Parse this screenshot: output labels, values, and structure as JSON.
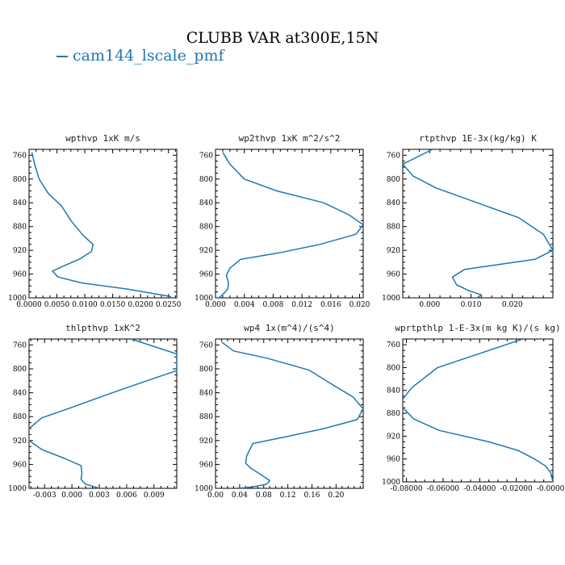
{
  "title": "CLUBB VAR at300E,15N",
  "legend": {
    "label": "cam144_lscale_pmf",
    "color": "#1f77b4"
  },
  "chart_data": [
    {
      "type": "line",
      "title": "wpthvp  1xK m/s",
      "ylim": [
        1000,
        750
      ],
      "xlim": [
        0.0,
        0.0265
      ],
      "yticks": [
        760,
        800,
        840,
        880,
        920,
        960,
        1000
      ],
      "xticks": [
        0.0,
        0.005,
        0.01,
        0.015,
        0.02,
        0.025
      ],
      "xticklabels": [
        "0.0000",
        "0.0050",
        "0.0100",
        "0.0150",
        "0.0200",
        "0.0250"
      ],
      "series": [
        {
          "x": [
            0.0005,
            0.001,
            0.0018,
            0.0035,
            0.0058,
            0.0075,
            0.0097,
            0.0115,
            0.0112,
            0.009,
            0.0058,
            0.0042,
            0.0052,
            0.0095,
            0.0175,
            0.0255
          ],
          "y": [
            755,
            775,
            800,
            825,
            845,
            870,
            895,
            910,
            922,
            935,
            948,
            955,
            965,
            975,
            985,
            998
          ]
        }
      ]
    },
    {
      "type": "line",
      "title": "wp2thvp  1xK m^2/s^2",
      "ylim": [
        1000,
        750
      ],
      "xlim": [
        0.0,
        0.0205
      ],
      "yticks": [
        760,
        800,
        840,
        880,
        920,
        960,
        1000
      ],
      "xticks": [
        0.0,
        0.004,
        0.008,
        0.012,
        0.016,
        0.02
      ],
      "xticklabels": [
        "0.000",
        "0.004",
        "0.008",
        "0.012",
        "0.016",
        "0.020"
      ],
      "series": [
        {
          "x": [
            0.001,
            0.002,
            0.004,
            0.0085,
            0.015,
            0.0185,
            0.0205,
            0.0195,
            0.0145,
            0.0085,
            0.0035,
            0.002,
            0.0015,
            0.0018,
            0.0017,
            0.0012,
            0.0005
          ],
          "y": [
            755,
            775,
            800,
            820,
            840,
            860,
            877,
            893,
            910,
            925,
            935,
            950,
            962,
            975,
            985,
            992,
            1000
          ]
        }
      ]
    },
    {
      "type": "line",
      "title": "rtpthvp  1E-3x(kg/kg) K",
      "ylim": [
        1000,
        750
      ],
      "xlim": [
        -0.0065,
        0.0298
      ],
      "yticks": [
        760,
        800,
        840,
        880,
        920,
        960,
        1000
      ],
      "xticks": [
        0.0,
        0.01,
        0.02
      ],
      "xticklabels": [
        "0.000",
        "0.010",
        "0.020"
      ],
      "series": [
        {
          "x": [
            0.0007,
            -0.0065,
            -0.004,
            0.0015,
            0.0115,
            0.0215,
            0.0275,
            0.0298,
            0.0255,
            0.0085,
            0.0055,
            0.0065,
            0.0095,
            0.0125,
            0.0115
          ],
          "y": [
            750,
            775,
            795,
            815,
            840,
            865,
            893,
            920,
            935,
            952,
            965,
            978,
            988,
            995,
            1000
          ]
        }
      ]
    },
    {
      "type": "line",
      "title": "thlpthvp  1xK^2",
      "ylim": [
        1000,
        750
      ],
      "xlim": [
        -0.0047,
        0.0115
      ],
      "yticks": [
        760,
        800,
        840,
        880,
        920,
        960,
        1000
      ],
      "xticks": [
        -0.003,
        0.0,
        0.003,
        0.006,
        0.009
      ],
      "xticklabels": [
        "-0.003",
        "0.000",
        "0.003",
        "0.006",
        "0.009"
      ],
      "series": [
        {
          "x": [
            0.0065,
            0.0115,
            0.0115,
            0.0082,
            0.0035,
            -0.0001,
            -0.0033,
            -0.0047,
            -0.0047,
            -0.0033,
            -0.0008,
            0.001,
            0.0011,
            0.001,
            0.0015,
            0.003
          ],
          "y": [
            750,
            775,
            803,
            820,
            845,
            865,
            882,
            900,
            920,
            935,
            950,
            962,
            975,
            985,
            993,
            1000
          ]
        }
      ]
    },
    {
      "type": "line",
      "title": "wp4   1x(m^4)/(s^4)",
      "ylim": [
        1000,
        750
      ],
      "xlim": [
        0.0,
        0.245
      ],
      "yticks": [
        760,
        800,
        840,
        880,
        920,
        960,
        1000
      ],
      "xticks": [
        0.0,
        0.04,
        0.08,
        0.12,
        0.16,
        0.2
      ],
      "xticklabels": [
        "0.00",
        "0.04",
        "0.08",
        "0.12",
        "0.16",
        "0.20"
      ],
      "series": [
        {
          "x": [
            0.01,
            0.03,
            0.085,
            0.155,
            0.195,
            0.228,
            0.245,
            0.235,
            0.18,
            0.12,
            0.062,
            0.052,
            0.05,
            0.058,
            0.072,
            0.09,
            0.085,
            0.06,
            0.035
          ],
          "y": [
            755,
            770,
            782,
            802,
            827,
            847,
            867,
            885,
            900,
            913,
            925,
            945,
            958,
            966,
            975,
            987,
            993,
            998,
            1000
          ]
        }
      ]
    },
    {
      "type": "line",
      "title": "wprtpthlp  1-E-3x(m kg K)/(s kg)",
      "ylim": [
        1000,
        750
      ],
      "xlim": [
        -0.082,
        0.0
      ],
      "yticks": [
        760,
        800,
        840,
        880,
        920,
        960,
        1000
      ],
      "xticks": [
        -0.08,
        -0.06,
        -0.04,
        -0.02,
        0.0
      ],
      "xticklabels": [
        "-0.08000",
        "-0.06000",
        "-0.04000",
        "-0.02000",
        "-0.00000"
      ],
      "series": [
        {
          "x": [
            -0.0165,
            -0.035,
            -0.063,
            -0.077,
            -0.082,
            -0.082,
            -0.076,
            -0.062,
            -0.035,
            -0.019,
            -0.01,
            -0.004,
            -0.001,
            0.0
          ],
          "y": [
            750,
            770,
            800,
            835,
            855,
            870,
            890,
            910,
            930,
            945,
            960,
            972,
            985,
            1000
          ]
        }
      ]
    }
  ]
}
